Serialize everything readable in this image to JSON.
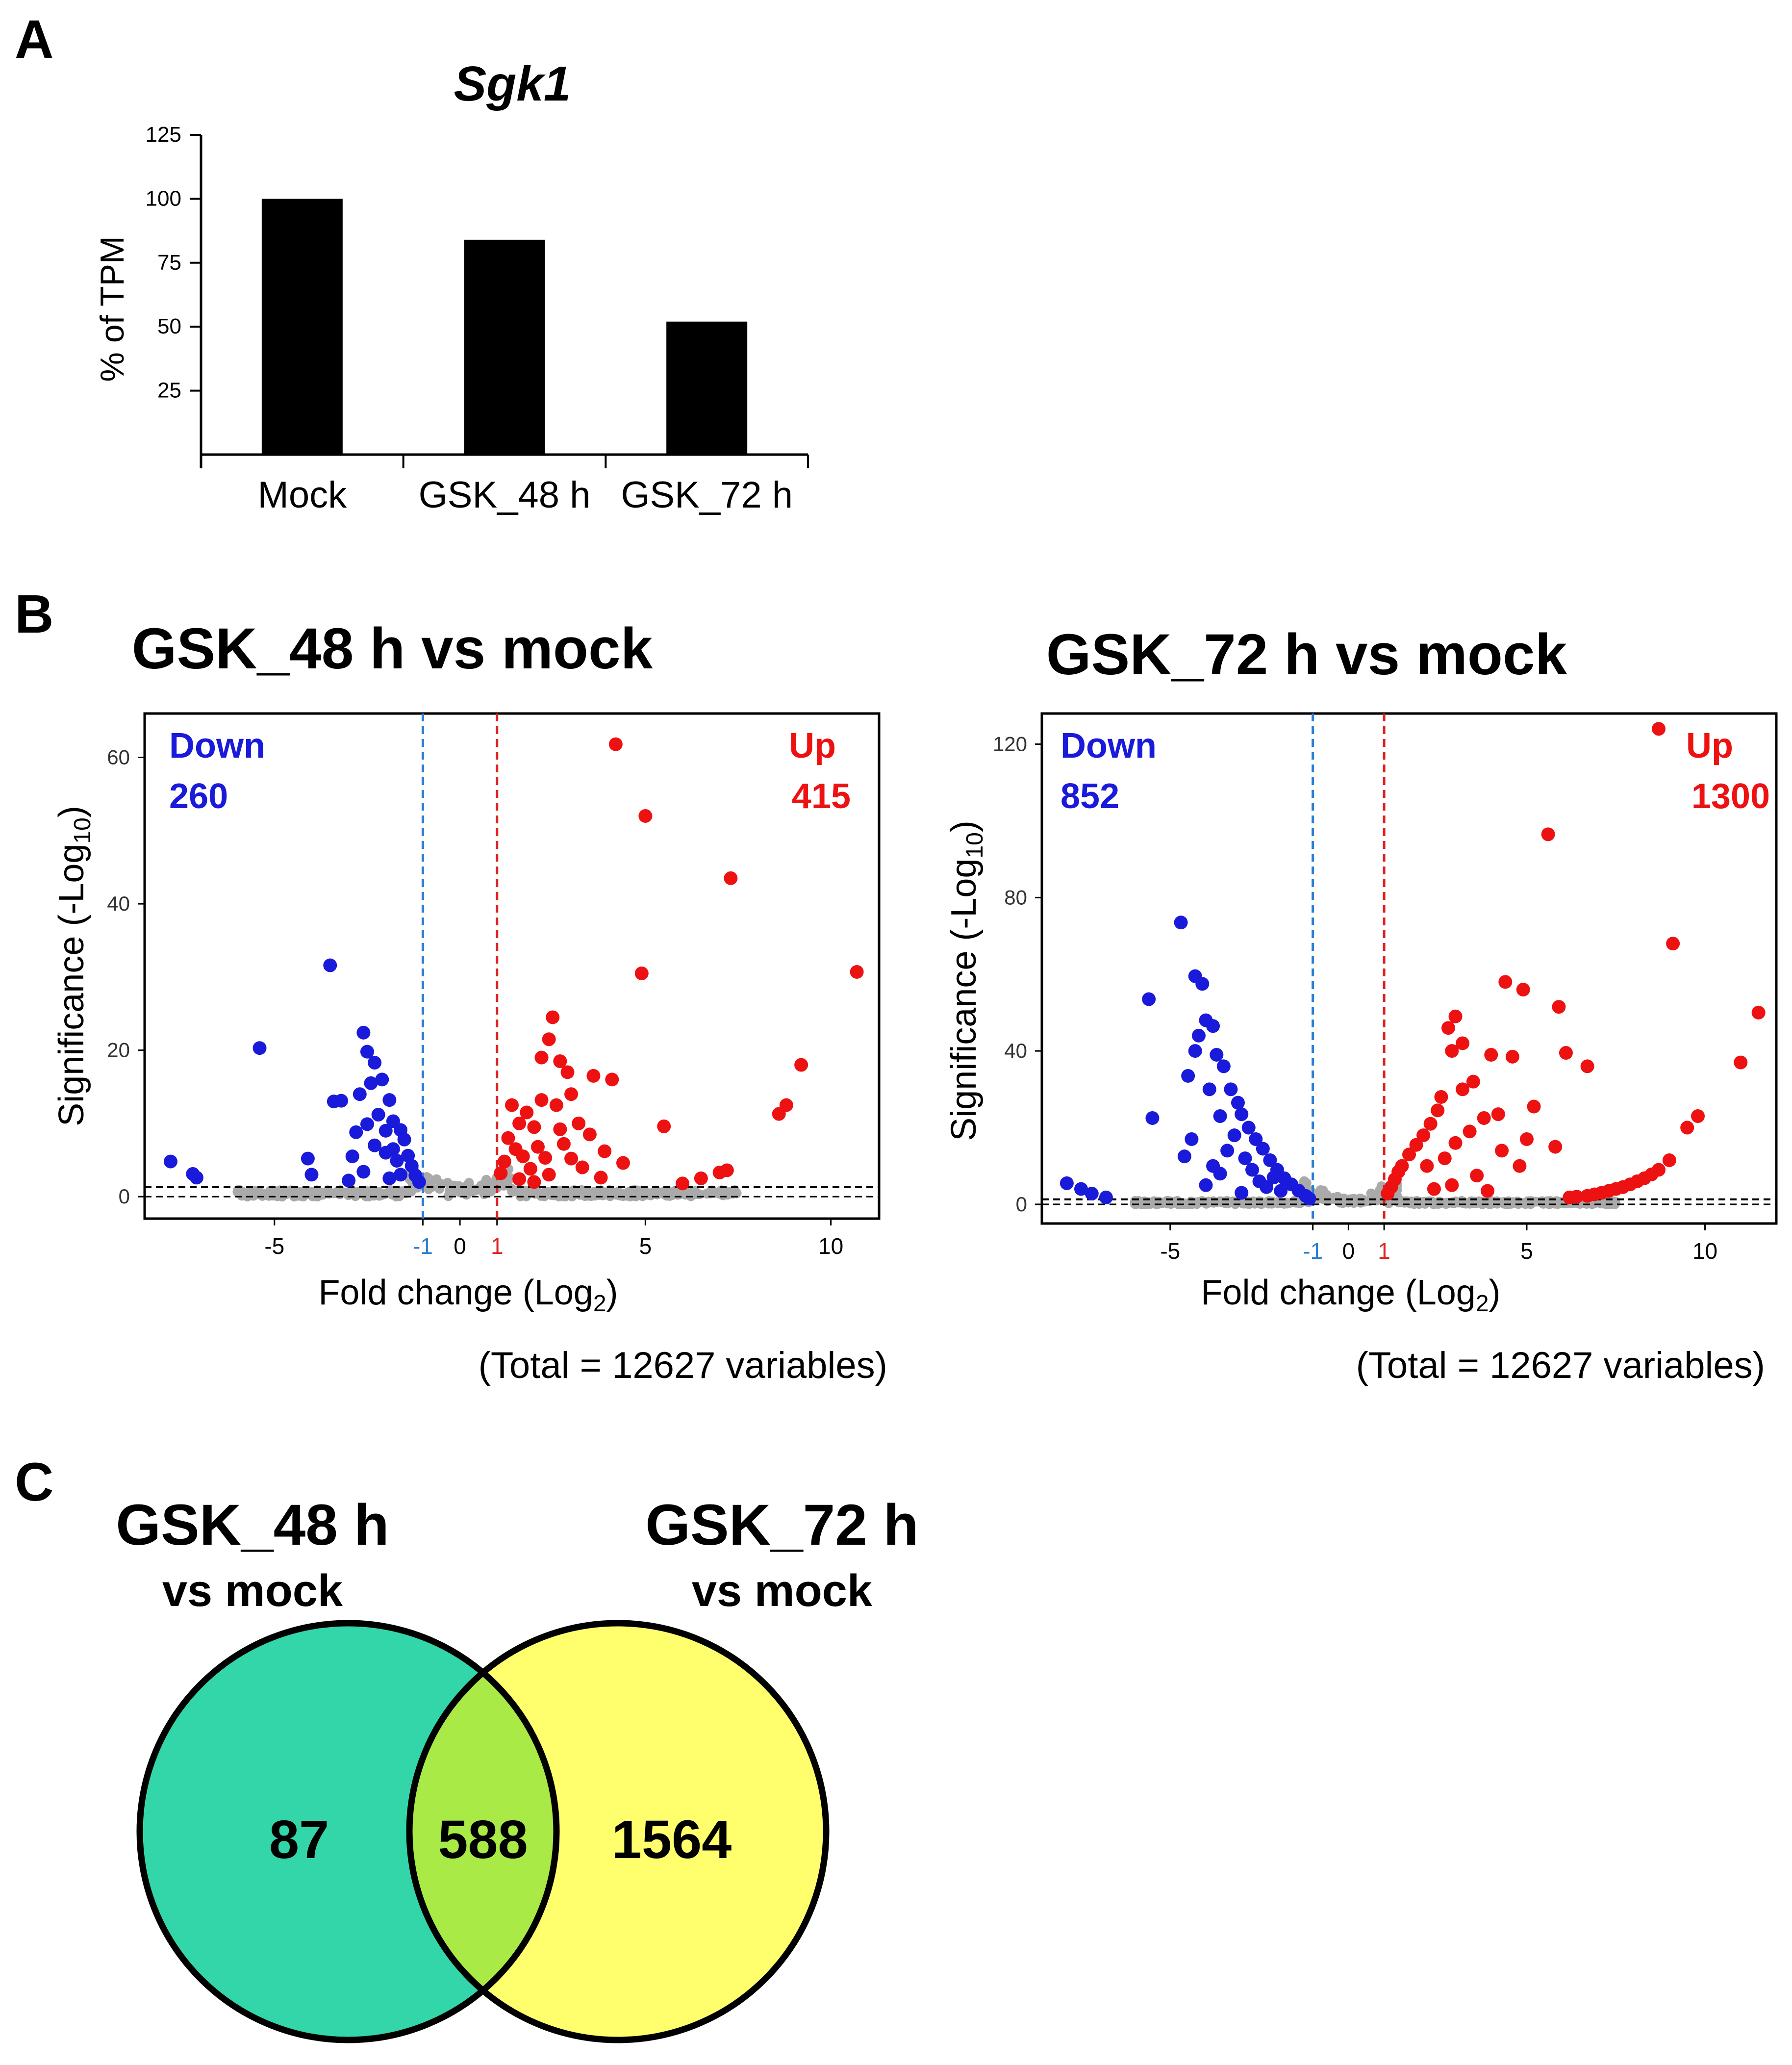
{
  "panels": {
    "a": "A",
    "b": "B",
    "c": "C"
  },
  "colors": {
    "bar": "#000000",
    "down": "#1a1adb",
    "up": "#ee1111",
    "ns": "#aaaaaa",
    "threshold_down": "#2a7fd4",
    "threshold_up": "#dd2222",
    "venn_left": "#33d6a9",
    "venn_right": "#ffff6e",
    "venn_overlap": "#a9ea46"
  },
  "chart_data": [
    {
      "id": "sgk1-bar",
      "type": "bar",
      "title": "Sgk1",
      "ylabel": "% of TPM",
      "xlabel": "",
      "categories": [
        "Mock",
        "GSK_48 h",
        "GSK_72 h"
      ],
      "values": [
        100,
        84,
        52
      ],
      "ylim": [
        0,
        125
      ],
      "yticks": [
        25,
        50,
        75,
        100,
        125
      ]
    },
    {
      "id": "volcano-48h",
      "type": "scatter",
      "title": "GSK_48 h vs mock",
      "xlabel": "Fold change (Log",
      "xlabel_sub": "2",
      "xlabel_end": ")",
      "ylabel": "Significance (-Log",
      "ylabel_sub": "10",
      "ylabel_end": ")",
      "xlim": [
        -8.5,
        11.3
      ],
      "ylim": [
        -3,
        66
      ],
      "xticks": [
        "-5",
        "-1",
        "0",
        "1",
        "5",
        "10"
      ],
      "xtick_values": [
        -5,
        -1,
        0,
        1,
        5,
        10
      ],
      "yticks": [
        "0",
        "20",
        "40",
        "60"
      ],
      "ytick_values": [
        0,
        20,
        40,
        60
      ],
      "thresholds": {
        "fc_low": -1,
        "fc_high": 1,
        "significance": 1.3
      },
      "down_label": "Down",
      "down_count": "260",
      "up_label": "Up",
      "up_count": "415",
      "total_note": "(Total = 12627 variables)",
      "down_points": [
        [
          -7.8,
          4.8
        ],
        [
          -7.2,
          3.1
        ],
        [
          -7.1,
          2.6
        ],
        [
          -5.4,
          20.3
        ],
        [
          -4.1,
          5.2
        ],
        [
          -4.0,
          3.0
        ],
        [
          -3.5,
          31.6
        ],
        [
          -3.4,
          13.0
        ],
        [
          -3.2,
          13.1
        ],
        [
          -2.6,
          22.4
        ],
        [
          -2.5,
          19.8
        ],
        [
          -2.3,
          18.3
        ],
        [
          -2.7,
          14.0
        ],
        [
          -2.4,
          15.5
        ],
        [
          -2.1,
          16.0
        ],
        [
          -1.9,
          13.2
        ],
        [
          -2.8,
          8.8
        ],
        [
          -2.5,
          9.9
        ],
        [
          -2.2,
          11.2
        ],
        [
          -1.8,
          10.3
        ],
        [
          -1.6,
          9.1
        ],
        [
          -1.5,
          7.8
        ],
        [
          -1.4,
          5.6
        ],
        [
          -1.3,
          4.2
        ],
        [
          -1.2,
          2.9
        ],
        [
          -1.1,
          2.0
        ],
        [
          -2.0,
          6.0
        ],
        [
          -1.7,
          4.9
        ],
        [
          -2.6,
          3.4
        ],
        [
          -3.0,
          2.2
        ],
        [
          -2.9,
          5.5
        ],
        [
          -1.9,
          2.5
        ],
        [
          -1.6,
          3.0
        ],
        [
          -2.3,
          7.0
        ],
        [
          -2.0,
          9.0
        ],
        [
          -1.8,
          6.5
        ]
      ],
      "up_points": [
        [
          4.2,
          61.8
        ],
        [
          5.0,
          52.0
        ],
        [
          7.3,
          43.5
        ],
        [
          4.9,
          30.5
        ],
        [
          10.7,
          30.7
        ],
        [
          9.2,
          18.0
        ],
        [
          8.8,
          12.5
        ],
        [
          8.6,
          11.3
        ],
        [
          5.5,
          9.6
        ],
        [
          6.0,
          1.8
        ],
        [
          6.5,
          2.5
        ],
        [
          7.0,
          3.3
        ],
        [
          7.2,
          3.6
        ],
        [
          2.5,
          24.5
        ],
        [
          2.4,
          21.5
        ],
        [
          2.2,
          19.0
        ],
        [
          2.7,
          18.5
        ],
        [
          2.9,
          17.0
        ],
        [
          3.0,
          14.0
        ],
        [
          2.6,
          12.5
        ],
        [
          3.6,
          16.5
        ],
        [
          4.1,
          16.0
        ],
        [
          3.2,
          10.0
        ],
        [
          3.5,
          8.5
        ],
        [
          3.9,
          6.2
        ],
        [
          4.4,
          4.6
        ],
        [
          1.4,
          12.5
        ],
        [
          1.6,
          10.0
        ],
        [
          1.8,
          11.5
        ],
        [
          2.0,
          9.5
        ],
        [
          1.3,
          8.0
        ],
        [
          1.5,
          6.5
        ],
        [
          1.2,
          4.8
        ],
        [
          1.1,
          3.2
        ],
        [
          1.7,
          5.5
        ],
        [
          2.1,
          6.8
        ],
        [
          2.3,
          5.3
        ],
        [
          2.8,
          7.2
        ],
        [
          1.9,
          3.8
        ],
        [
          2.4,
          3.0
        ],
        [
          3.3,
          4.0
        ],
        [
          2.0,
          2.0
        ],
        [
          1.6,
          2.4
        ],
        [
          3.8,
          2.6
        ],
        [
          3.0,
          5.2
        ],
        [
          2.7,
          9.2
        ],
        [
          2.2,
          13.2
        ]
      ]
    },
    {
      "id": "volcano-72h",
      "type": "scatter",
      "title": "GSK_72 h vs mock",
      "xlabel": "Fold change (Log",
      "xlabel_sub": "2",
      "xlabel_end": ")",
      "ylabel": "Significance (-Log",
      "ylabel_sub": "10",
      "ylabel_end": ")",
      "xlim": [
        -8.6,
        12.0
      ],
      "ylim": [
        -5,
        128
      ],
      "xticks": [
        "-5",
        "-1",
        "0",
        "1",
        "5",
        "10"
      ],
      "xtick_values": [
        -5,
        -1,
        0,
        1,
        5,
        10
      ],
      "yticks": [
        "0",
        "40",
        "80",
        "120"
      ],
      "ytick_values": [
        0,
        40,
        80,
        120
      ],
      "thresholds": {
        "fc_low": -1,
        "fc_high": 1,
        "significance": 1.3
      },
      "down_label": "Down",
      "down_count": "852",
      "up_label": "Up",
      "up_count": "1300",
      "total_note": "(Total = 12627 variables)",
      "down_points": [
        [
          -7.9,
          5.5
        ],
        [
          -7.5,
          4.0
        ],
        [
          -7.2,
          2.8
        ],
        [
          -6.8,
          1.8
        ],
        [
          -5.6,
          53.5
        ],
        [
          -5.5,
          22.5
        ],
        [
          -4.7,
          73.5
        ],
        [
          -4.3,
          59.5
        ],
        [
          -4.1,
          57.5
        ],
        [
          -4.0,
          48.0
        ],
        [
          -3.8,
          46.5
        ],
        [
          -4.2,
          44.0
        ],
        [
          -4.3,
          40.0
        ],
        [
          -3.7,
          39.0
        ],
        [
          -3.5,
          36.0
        ],
        [
          -4.5,
          33.5
        ],
        [
          -3.9,
          30.0
        ],
        [
          -3.3,
          30.0
        ],
        [
          -3.1,
          26.5
        ],
        [
          -3.6,
          23.0
        ],
        [
          -3.0,
          23.5
        ],
        [
          -2.8,
          20.0
        ],
        [
          -2.6,
          17.0
        ],
        [
          -2.4,
          14.5
        ],
        [
          -2.2,
          11.5
        ],
        [
          -2.0,
          9.0
        ],
        [
          -1.8,
          6.8
        ],
        [
          -1.6,
          5.2
        ],
        [
          -1.4,
          3.6
        ],
        [
          -1.2,
          2.2
        ],
        [
          -1.1,
          1.5
        ],
        [
          -4.4,
          17.0
        ],
        [
          -4.6,
          12.5
        ],
        [
          -3.4,
          14.0
        ],
        [
          -3.2,
          18.0
        ],
        [
          -2.9,
          12.0
        ],
        [
          -2.7,
          9.0
        ],
        [
          -3.6,
          8.0
        ],
        [
          -4.0,
          5.0
        ],
        [
          -2.5,
          6.0
        ],
        [
          -2.3,
          4.5
        ],
        [
          -1.9,
          3.5
        ],
        [
          -3.0,
          3.0
        ],
        [
          -3.8,
          10.0
        ],
        [
          -2.1,
          7.0
        ]
      ],
      "up_points": [
        [
          8.7,
          124.0
        ],
        [
          5.6,
          96.5
        ],
        [
          9.1,
          68.0
        ],
        [
          11.5,
          50.0
        ],
        [
          4.4,
          58.0
        ],
        [
          3.0,
          49.0
        ],
        [
          2.8,
          46.0
        ],
        [
          4.9,
          56.0
        ],
        [
          5.9,
          51.5
        ],
        [
          3.2,
          42.0
        ],
        [
          2.9,
          40.0
        ],
        [
          4.0,
          39.0
        ],
        [
          4.6,
          38.5
        ],
        [
          6.1,
          39.5
        ],
        [
          6.7,
          36.0
        ],
        [
          11.0,
          37.0
        ],
        [
          9.8,
          23.0
        ],
        [
          9.5,
          20.0
        ],
        [
          5.2,
          25.5
        ],
        [
          4.2,
          23.5
        ],
        [
          5.8,
          15.0
        ],
        [
          5.0,
          17.0
        ],
        [
          3.5,
          32.0
        ],
        [
          3.2,
          30.0
        ],
        [
          2.6,
          28.0
        ],
        [
          2.5,
          24.5
        ],
        [
          2.3,
          21.0
        ],
        [
          2.1,
          18.0
        ],
        [
          1.9,
          15.5
        ],
        [
          1.7,
          13.0
        ],
        [
          1.5,
          10.0
        ],
        [
          1.4,
          8.5
        ],
        [
          1.3,
          6.5
        ],
        [
          1.2,
          4.5
        ],
        [
          1.1,
          2.8
        ],
        [
          2.2,
          10.0
        ],
        [
          2.7,
          12.0
        ],
        [
          3.0,
          16.0
        ],
        [
          3.4,
          19.0
        ],
        [
          3.8,
          22.5
        ],
        [
          4.3,
          14.0
        ],
        [
          4.8,
          10.0
        ],
        [
          3.6,
          7.5
        ],
        [
          2.9,
          5.0
        ],
        [
          2.4,
          4.0
        ],
        [
          3.9,
          3.5
        ],
        [
          6.2,
          1.8
        ],
        [
          6.7,
          2.2
        ],
        [
          7.1,
          3.0
        ],
        [
          7.5,
          4.0
        ],
        [
          7.9,
          5.2
        ],
        [
          8.3,
          6.8
        ],
        [
          8.7,
          9.0
        ],
        [
          9.0,
          11.5
        ],
        [
          6.4,
          2.0
        ],
        [
          6.9,
          2.6
        ],
        [
          7.3,
          3.5
        ],
        [
          7.7,
          4.5
        ],
        [
          8.1,
          6.0
        ],
        [
          8.5,
          7.8
        ]
      ]
    },
    {
      "id": "venn",
      "type": "venn",
      "sets": [
        {
          "label": "GSK_48 h",
          "sublabel": "vs mock",
          "only": 87
        },
        {
          "label": "GSK_72 h",
          "sublabel": "vs mock",
          "only": 1564
        }
      ],
      "intersection": 588
    }
  ]
}
